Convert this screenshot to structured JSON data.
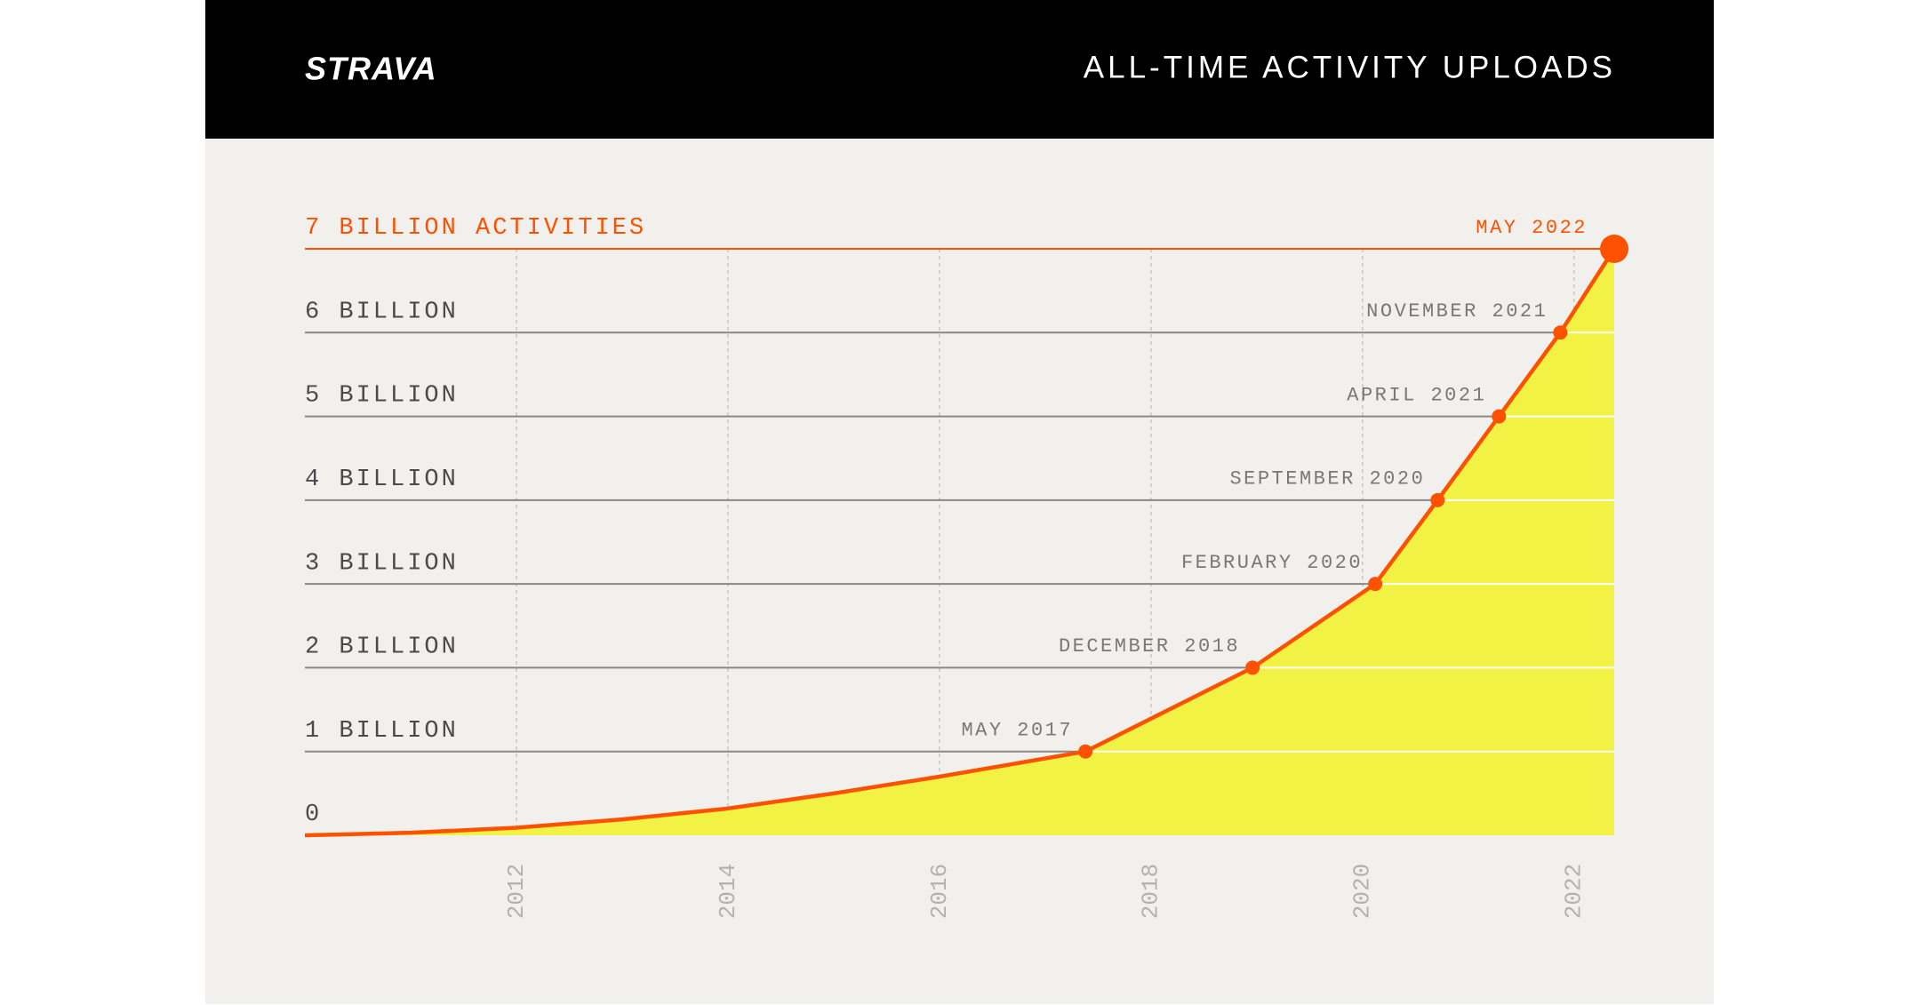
{
  "chart_data": {
    "type": "area",
    "brand": "STRAVA",
    "title": "ALL-TIME ACTIVITY UPLOADS",
    "x": [
      2010,
      2011,
      2012,
      2013,
      2014,
      2015,
      2016,
      2017.38,
      2018.96,
      2020.12,
      2020.71,
      2021.29,
      2021.87,
      2022.38
    ],
    "series": [
      {
        "values": [
          0,
          0.03,
          0.09,
          0.19,
          0.32,
          0.5,
          0.7,
          1,
          2,
          3,
          4,
          5,
          6,
          7
        ],
        "color": "#fc5200",
        "fill": "#f2f244"
      }
    ],
    "milestones": [
      {
        "label": "MAY 2017",
        "x": 2017.38,
        "value": 1
      },
      {
        "label": "DECEMBER 2018",
        "x": 2018.96,
        "value": 2
      },
      {
        "label": "FEBRUARY 2020",
        "x": 2020.12,
        "value": 3
      },
      {
        "label": "SEPTEMBER 2020",
        "x": 2020.71,
        "value": 4
      },
      {
        "label": "APRIL 2021",
        "x": 2021.29,
        "value": 5
      },
      {
        "label": "NOVEMBER 2021",
        "x": 2021.87,
        "value": 6
      },
      {
        "label": "MAY 2022",
        "x": 2022.38,
        "value": 7
      }
    ],
    "xlim": [
      2010,
      2022.38
    ],
    "xticks": [
      2012,
      2014,
      2016,
      2018,
      2020,
      2022
    ],
    "ylim": [
      0,
      7
    ],
    "yticks": [
      0,
      {
        "value": 1,
        "label": "1 BILLION"
      },
      {
        "value": 2,
        "label": "2 BILLION"
      },
      {
        "value": 3,
        "label": "3 BILLION"
      },
      {
        "value": 4,
        "label": "4 BILLION"
      },
      {
        "value": 5,
        "label": "5 BILLION"
      },
      {
        "value": 6,
        "label": "6 BILLION"
      },
      {
        "value": 7,
        "label": "7 BILLION ACTIVITIES"
      }
    ]
  }
}
